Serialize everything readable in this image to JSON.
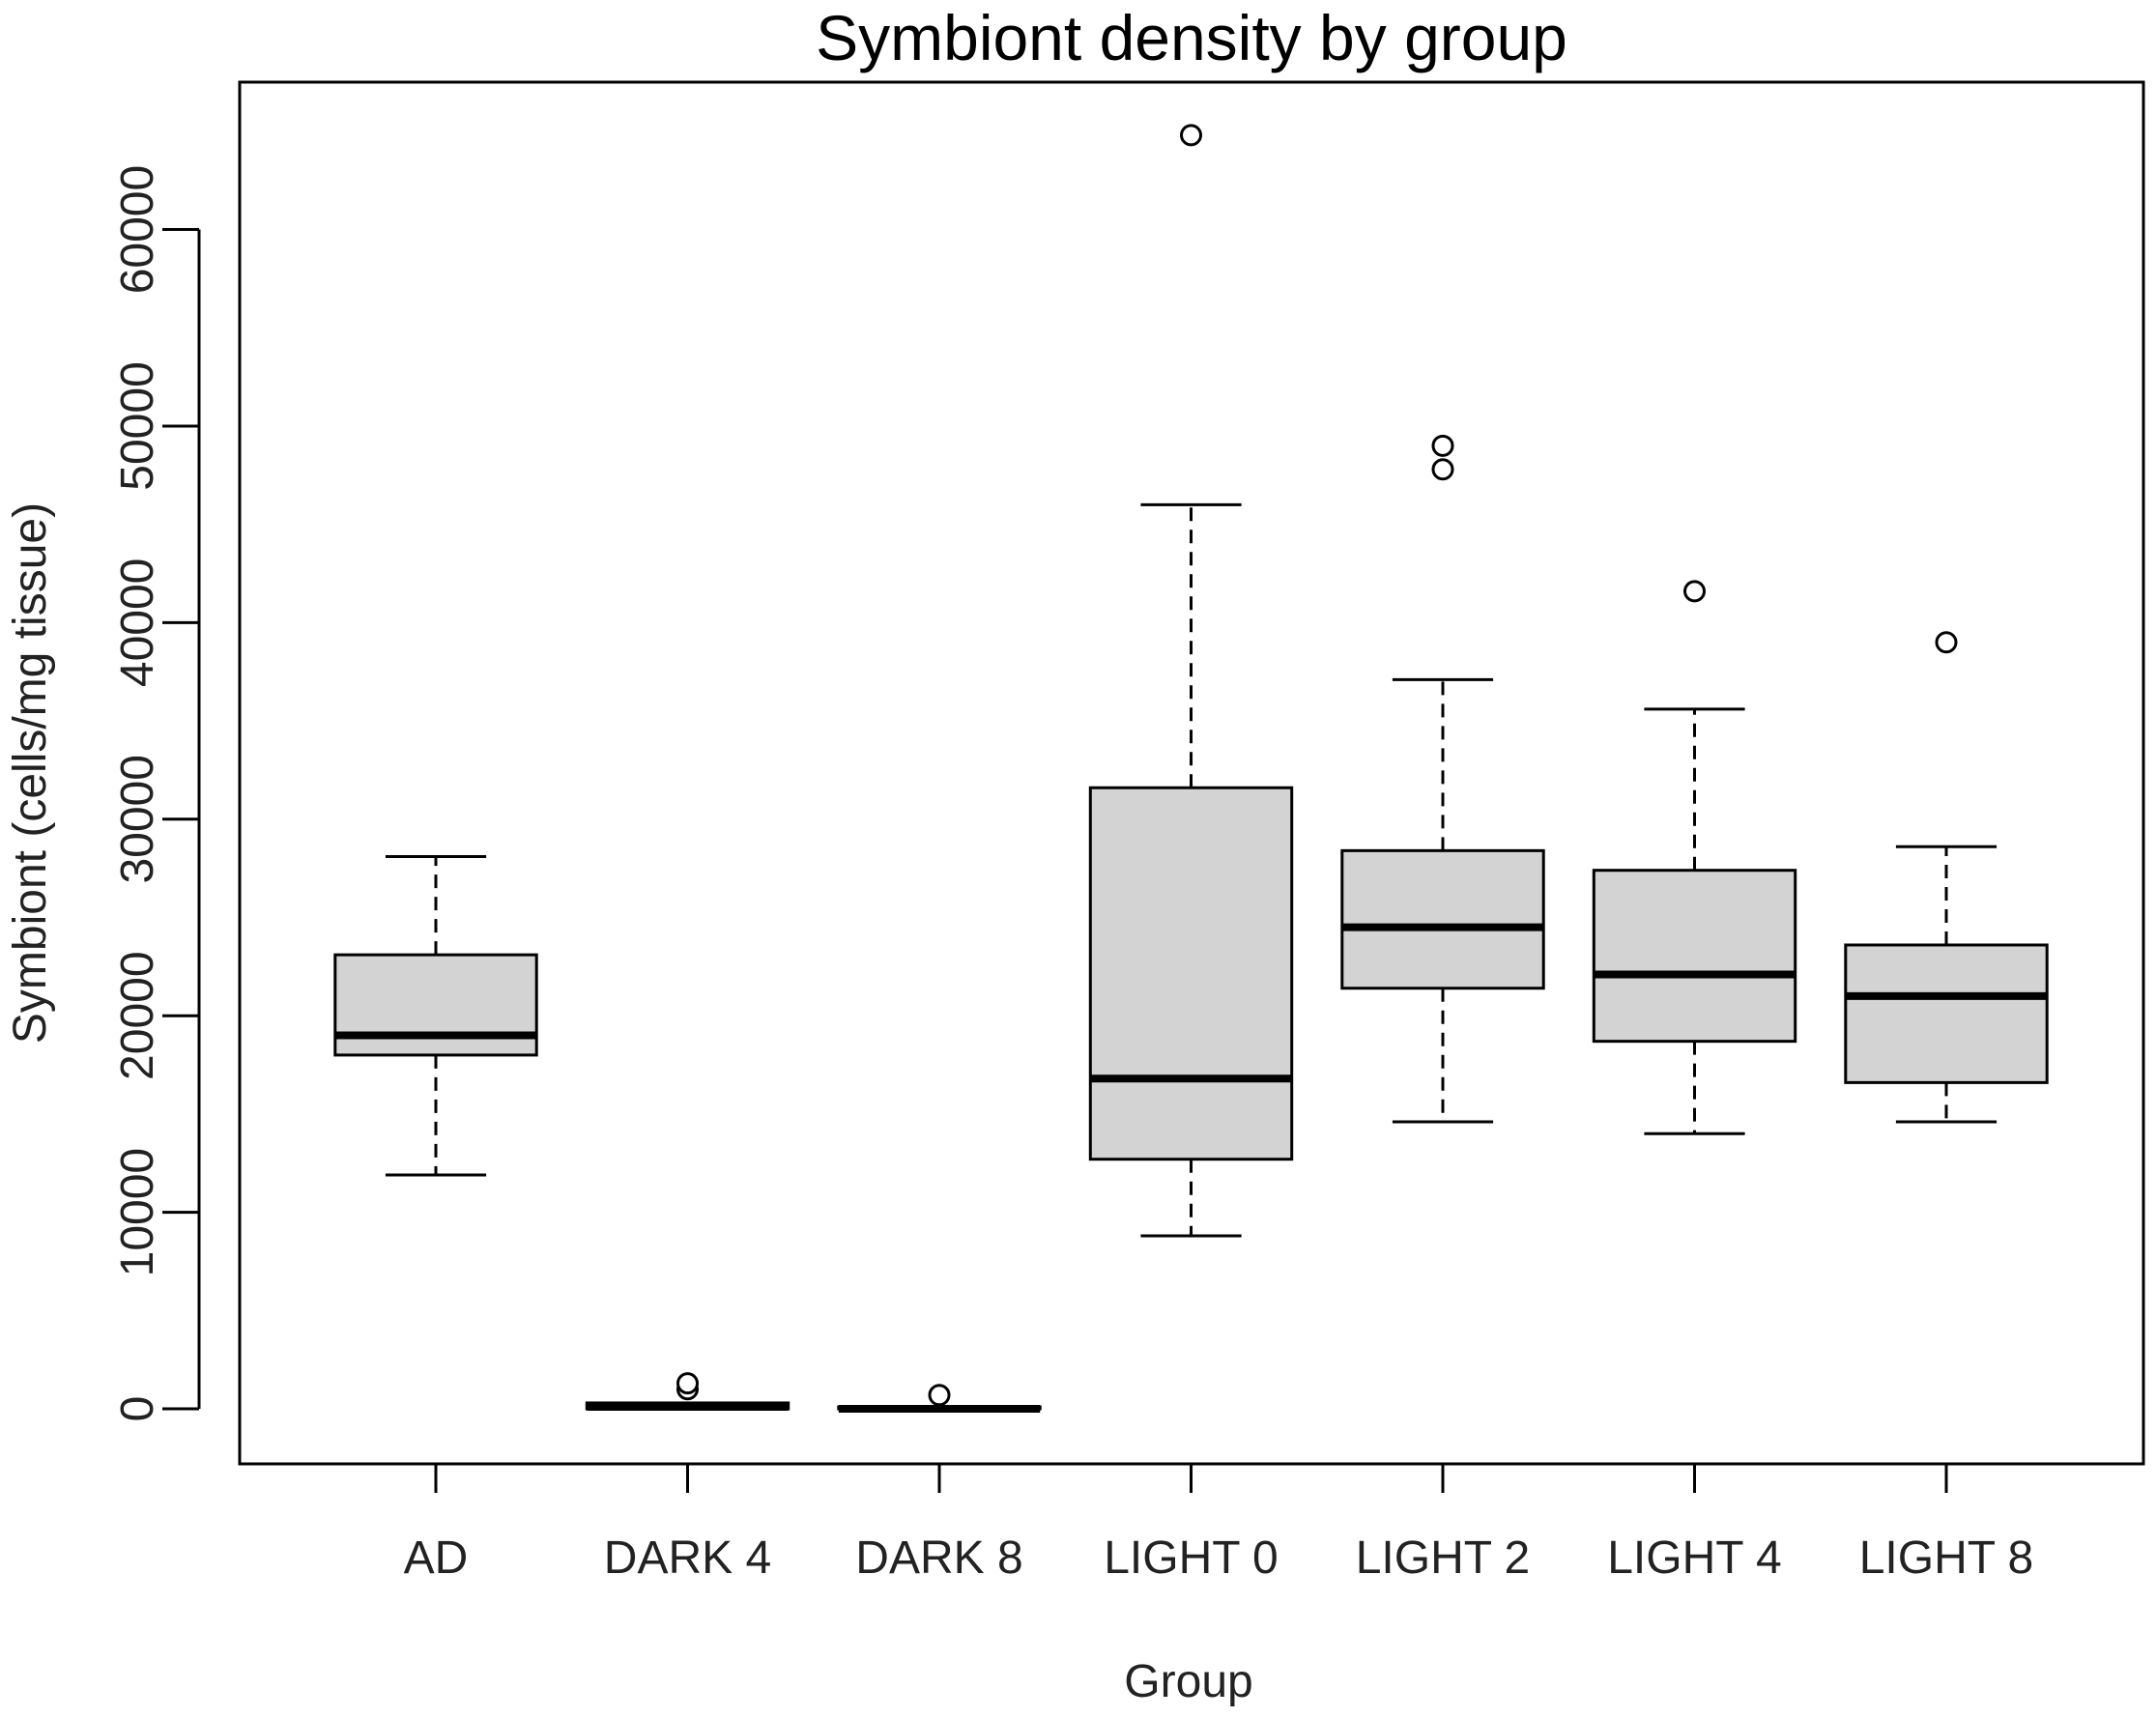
{
  "chart_data": {
    "type": "boxplot",
    "title": "Symbiont density by group",
    "xlabel": "Group",
    "ylabel": "Symbiont (cells/mg tissue)",
    "ylim": [
      -2800,
      67500
    ],
    "y_ticks": [
      0,
      10000,
      20000,
      30000,
      40000,
      50000,
      60000
    ],
    "grid": false,
    "legend": "none",
    "colors": {
      "box_fill": "#d3d3d3",
      "line": "#000000",
      "frame": "#000000"
    },
    "categories": [
      "AD",
      "DARK 4",
      "DARK 8",
      "LIGHT 0",
      "LIGHT 2",
      "LIGHT 4",
      "LIGHT 8"
    ],
    "groups": [
      {
        "name": "AD",
        "whisker_low": 11900,
        "q1": 18000,
        "median": 19000,
        "q3": 23100,
        "whisker_high": 28100,
        "outliers": []
      },
      {
        "name": "DARK 4",
        "whisker_low": 0,
        "q1": 0,
        "median": 100,
        "q3": 300,
        "whisker_high": 300,
        "outliers": [
          1000,
          1300
        ]
      },
      {
        "name": "DARK 8",
        "whisker_low": 0,
        "q1": 0,
        "median": 0,
        "q3": 100,
        "whisker_high": 100,
        "outliers": [
          700
        ]
      },
      {
        "name": "LIGHT 0",
        "whisker_low": 8800,
        "q1": 12700,
        "median": 16800,
        "q3": 31600,
        "whisker_high": 46000,
        "outliers": [
          64800
        ]
      },
      {
        "name": "LIGHT 2",
        "whisker_low": 14600,
        "q1": 21400,
        "median": 24500,
        "q3": 28400,
        "whisker_high": 37100,
        "outliers": [
          47800,
          49000
        ]
      },
      {
        "name": "LIGHT 4",
        "whisker_low": 14000,
        "q1": 18700,
        "median": 22100,
        "q3": 27400,
        "whisker_high": 35600,
        "outliers": [
          41600
        ]
      },
      {
        "name": "LIGHT 8",
        "whisker_low": 14600,
        "q1": 16600,
        "median": 21000,
        "q3": 23600,
        "whisker_high": 28600,
        "outliers": [
          39000
        ]
      }
    ]
  }
}
